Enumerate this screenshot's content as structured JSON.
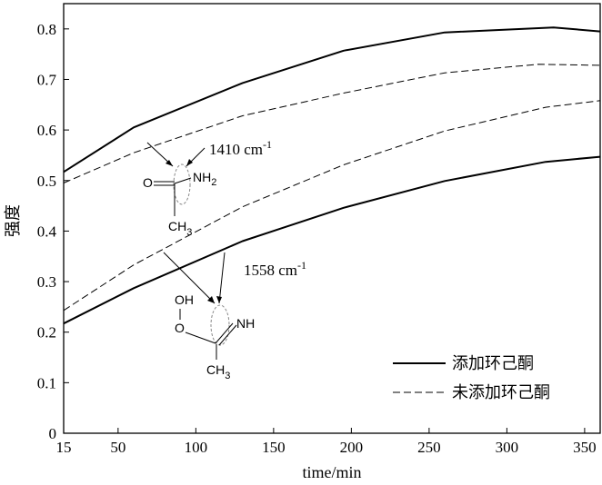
{
  "chart_data": {
    "type": "line",
    "xlabel": "time/min",
    "ylabel": "强度",
    "xlim": [
      15,
      360
    ],
    "ylim": [
      0,
      0.85
    ],
    "x_ticks": [
      "15",
      "50",
      "100",
      "150",
      "200",
      "250",
      "300",
      "350"
    ],
    "y_ticks": [
      "0",
      "0.1",
      "0.2",
      "0.3",
      "0.4",
      "0.5",
      "0.6",
      "0.7",
      "0.8"
    ],
    "legend": {
      "position": "bottom-right"
    },
    "series": [
      {
        "name": "添加环己酮",
        "style": "solid",
        "group": "upper",
        "x": [
          15,
          60,
          130,
          195,
          260,
          330,
          360
        ],
        "y": [
          0.517,
          0.605,
          0.693,
          0.757,
          0.793,
          0.803,
          0.795
        ]
      },
      {
        "name": "未添加环己酮",
        "style": "dashed",
        "group": "upper",
        "x": [
          15,
          60,
          130,
          195,
          260,
          320,
          360
        ],
        "y": [
          0.495,
          0.555,
          0.628,
          0.673,
          0.713,
          0.73,
          0.728
        ]
      },
      {
        "name": "添加环己酮",
        "style": "solid",
        "group": "lower",
        "x": [
          15,
          60,
          130,
          195,
          260,
          325,
          360
        ],
        "y": [
          0.217,
          0.287,
          0.38,
          0.446,
          0.499,
          0.537,
          0.547
        ]
      },
      {
        "name": "未添加环己酮",
        "style": "dashed",
        "group": "lower",
        "x": [
          15,
          60,
          130,
          195,
          260,
          325,
          360
        ],
        "y": [
          0.243,
          0.333,
          0.448,
          0.531,
          0.598,
          0.645,
          0.658
        ]
      }
    ],
    "annotations": [
      {
        "label": "1410 cm",
        "sup": "-1"
      },
      {
        "label": "1558 cm",
        "sup": "-1"
      }
    ],
    "structures": {
      "amide": {
        "o": "O",
        "nh": "NH",
        "nh_sub": "2",
        "ch": "CH",
        "ch_sub": "3"
      },
      "imine": {
        "oh": "OH",
        "o": "O",
        "nh": "NH",
        "ch": "CH",
        "ch_sub": "3"
      }
    }
  }
}
